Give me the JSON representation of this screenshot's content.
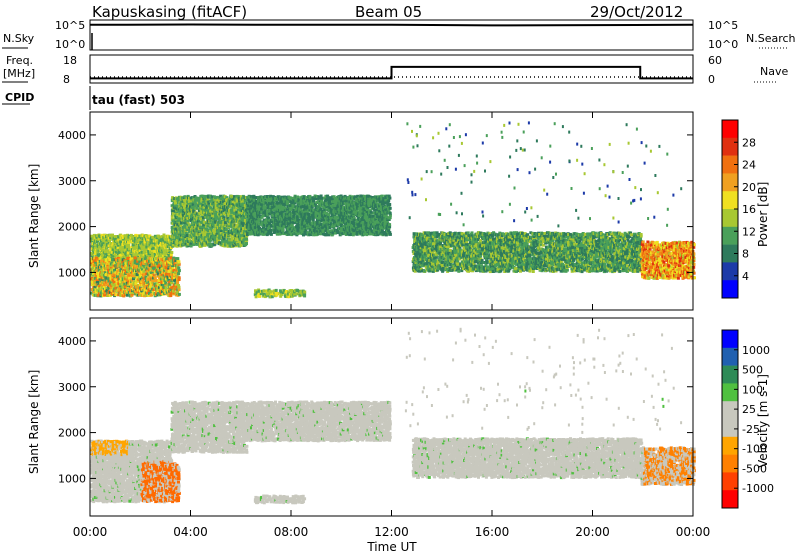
{
  "header": {
    "site": "Kapuskasing (fitACF)",
    "beam": "Beam 05",
    "date": "29/Oct/2012"
  },
  "chart_data": [
    {
      "type": "line",
      "panel": "noise",
      "left_label": "N.Sky",
      "left_ticks": [
        "10^5",
        "10^0"
      ],
      "right_label": "N.Search",
      "right_ticks": [
        "10^5",
        "10^0"
      ],
      "x_hours": [
        0,
        0.5,
        4,
        8,
        12,
        16,
        20,
        24
      ],
      "n_sky_log": [
        4.2,
        4.2,
        4.25,
        4.2,
        4.2,
        4.1,
        4.15,
        4.2
      ]
    },
    {
      "type": "line",
      "panel": "frequency",
      "left_label": "Freq.",
      "left_unit": "[MHz]",
      "left_ticks": [
        "18",
        "8"
      ],
      "ylim_left": [
        8,
        18
      ],
      "right_label": "Nave",
      "right_ticks": [
        "60",
        "0"
      ],
      "ylim_right": [
        0,
        60
      ],
      "freq_segments": [
        {
          "x": [
            0,
            12
          ],
          "value": 10
        },
        {
          "x": [
            12,
            21.9
          ],
          "value": 15
        },
        {
          "x": [
            21.9,
            24
          ],
          "value": 10
        }
      ],
      "nave_value": 4
    },
    {
      "type": "table",
      "panel": "cpid",
      "label": "CPID",
      "text": "tau (fast) 503"
    },
    {
      "type": "heatmap",
      "panel": "power",
      "ylabel": "Slant Range [km]",
      "yticks": [
        1000,
        2000,
        3000,
        4000
      ],
      "ylim": [
        180,
        4500
      ],
      "colorbar_label": "Power [dB]",
      "colorbar_ticks": [
        "28",
        "24",
        "20",
        "16",
        "12",
        "8",
        "4"
      ],
      "colors": [
        "#0000ff",
        "#1c3aa8",
        "#2e7a5c",
        "#4aa05a",
        "#a8c832",
        "#f0e020",
        "#f0a020",
        "#f07010",
        "#e03010",
        "#ff0000"
      ],
      "bands": [
        {
          "x": [
            0,
            3.2
          ],
          "y": [
            1150,
            1850
          ],
          "v": [
            10,
            16
          ]
        },
        {
          "x": [
            0,
            3.5
          ],
          "y": [
            520,
            1350
          ],
          "v": [
            8,
            24
          ]
        },
        {
          "x": [
            3.2,
            6.2
          ],
          "y": [
            1600,
            2700
          ],
          "v": [
            8,
            14
          ]
        },
        {
          "x": [
            6.2,
            11.9
          ],
          "y": [
            1850,
            2700
          ],
          "v": [
            6,
            12
          ]
        },
        {
          "x": [
            12.8,
            21.9
          ],
          "y": [
            1050,
            1900
          ],
          "v": [
            6,
            14
          ]
        },
        {
          "x": [
            21.9,
            24
          ],
          "y": [
            900,
            1700
          ],
          "v": [
            14,
            26
          ]
        },
        {
          "x": [
            6.5,
            8.5
          ],
          "y": [
            500,
            650
          ],
          "v": [
            10,
            16
          ]
        }
      ]
    },
    {
      "type": "heatmap",
      "panel": "velocity",
      "ylabel": "Slant Range [km]",
      "yticks": [
        1000,
        2000,
        3000,
        4000
      ],
      "ylim": [
        180,
        4500
      ],
      "colorbar_label": "Velocity [m s-1]",
      "colorbar_ticks": [
        "1000",
        "500",
        "100",
        "25",
        "-25",
        "-100",
        "-500",
        "-1000"
      ],
      "colors": [
        "#ff0000",
        "#ff4000",
        "#ff8000",
        "#ffa500",
        "#c8c8be",
        "#c8c8be",
        "#50c040",
        "#2e8b57",
        "#2060b0",
        "#0000ff"
      ],
      "xlabel": "Time UT",
      "xticks": [
        "00:00",
        "04:00",
        "08:00",
        "12:00",
        "16:00",
        "20:00",
        "00:00"
      ]
    }
  ]
}
